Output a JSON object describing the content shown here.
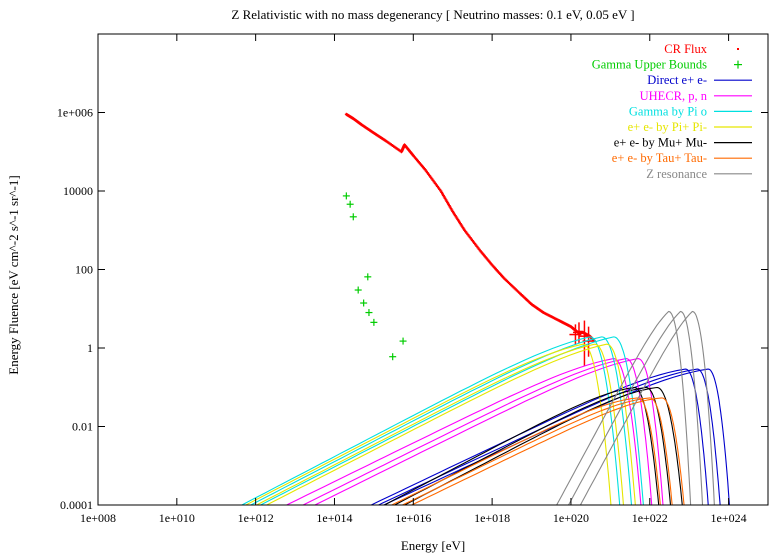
{
  "chart_data": {
    "type": "line",
    "title": "Z Relativistic with no mass degenerancy [ Neutrino masses: 0.1 eV, 0.05 eV ]",
    "xlabel": "Energy [eV]",
    "ylabel": "Energy Fluence [eV cm^-2 s^-1 sr^-1]",
    "xscale": "log",
    "yscale": "log",
    "xlim": [
      100000000.0,
      1e+25
    ],
    "ylim": [
      0.0001,
      100000000.0
    ],
    "xticks": [
      {
        "value": 100000000.0,
        "label": "1e+008"
      },
      {
        "value": 10000000000.0,
        "label": "1e+010"
      },
      {
        "value": 1000000000000.0,
        "label": "1e+012"
      },
      {
        "value": 100000000000000.0,
        "label": "1e+014"
      },
      {
        "value": 1e+16,
        "label": "1e+016"
      },
      {
        "value": 1e+18,
        "label": "1e+018"
      },
      {
        "value": 1e+20,
        "label": "1e+020"
      },
      {
        "value": 1e+22,
        "label": "1e+022"
      },
      {
        "value": 1e+24,
        "label": "1e+024"
      }
    ],
    "yticks": [
      {
        "value": 0.0001,
        "label": "0.0001"
      },
      {
        "value": 0.01,
        "label": "0.01"
      },
      {
        "value": 1,
        "label": "1"
      },
      {
        "value": 100,
        "label": "100"
      },
      {
        "value": 10000,
        "label": "10000"
      },
      {
        "value": 1000000,
        "label": "1e+006"
      }
    ],
    "grid": false,
    "legend_position": "top-right",
    "series": [
      {
        "name": "CR Flux",
        "kind": "points",
        "color": "#ff0000",
        "points": [
          [
            200000000000000.0,
            900000.0
          ],
          [
            300000000000000.0,
            700000.0
          ],
          [
            500000000000000.0,
            480000.0
          ],
          [
            1000000000000000.0,
            300000.0
          ],
          [
            2000000000000000.0,
            190000.0
          ],
          [
            5000000000000000.0,
            100000.0
          ],
          [
            6000000000000000.0,
            150000.0
          ],
          [
            1e+16,
            80000.0
          ],
          [
            2e+16,
            35000.0
          ],
          [
            5e+16,
            10000.0
          ],
          [
            1e+17,
            3000.0
          ],
          [
            2e+17,
            1000.0
          ],
          [
            5e+17,
            300
          ],
          [
            1e+18,
            130
          ],
          [
            2e+18,
            60
          ],
          [
            5e+18,
            25
          ],
          [
            1e+19,
            13
          ],
          [
            2e+19,
            8
          ],
          [
            5e+19,
            5
          ],
          [
            1e+20,
            3.5
          ],
          [
            1.5e+20,
            2.5
          ],
          [
            2e+20,
            2.5
          ],
          [
            3e+20,
            2
          ],
          [
            4e+20,
            1.5
          ]
        ]
      },
      {
        "name": "Gamma Upper Bounds",
        "kind": "points",
        "color": "#00cc00",
        "points": [
          [
            200000000000000.0,
            7500
          ],
          [
            250000000000000.0,
            4600
          ],
          [
            300000000000000.0,
            2200
          ],
          [
            400000000000000.0,
            30
          ],
          [
            550000000000000.0,
            14
          ],
          [
            700000000000000.0,
            65
          ],
          [
            750000000000000.0,
            8
          ],
          [
            1000000000000000.0,
            4.5
          ],
          [
            3000000000000000.0,
            0.6
          ],
          [
            5500000000000000.0,
            1.5
          ]
        ]
      },
      {
        "name": "Direct e+ e-",
        "kind": "curves",
        "color": "#0000cc",
        "curves": [
          {
            "start": 200000000000000.0,
            "peak_e": 8e+22,
            "peak_v": 0.65,
            "cut": 3.5e+23
          },
          {
            "start": 300000000000000.0,
            "peak_e": 1.6e+23,
            "peak_v": 0.65,
            "cut": 7e+23
          },
          {
            "start": 400000000000000.0,
            "peak_e": 3e+23,
            "peak_v": 0.65,
            "cut": 1.2e+24
          }
        ]
      },
      {
        "name": "UHECR, p, n",
        "kind": "curves",
        "color": "#ff00ff",
        "curves": [
          {
            "start": 1500000000000.0,
            "peak_e": 1.2e+21,
            "peak_v": 1.2,
            "cut": 7e+21
          },
          {
            "start": 4000000000000.0,
            "peak_e": 2.5e+21,
            "peak_v": 1.2,
            "cut": 1.3e+22
          },
          {
            "start": 8000000000000.0,
            "peak_e": 5e+21,
            "peak_v": 1.2,
            "cut": 2.5e+22
          }
        ]
      },
      {
        "name": "Gamma by Pi o",
        "kind": "curves",
        "color": "#00e0e0",
        "curves": [
          {
            "start": 120000000000.0,
            "peak_e": 3e+20,
            "peak_v": 4.3,
            "cut": 2e+21
          },
          {
            "start": 200000000000.0,
            "peak_e": 6e+20,
            "peak_v": 4.3,
            "cut": 4e+21
          },
          {
            "start": 350000000000.0,
            "peak_e": 1.2e+21,
            "peak_v": 4.3,
            "cut": 8e+21
          }
        ]
      },
      {
        "name": "e+ e- by Pi+ Pi-",
        "kind": "curves",
        "color": "#e6e600",
        "curves": [
          {
            "start": 150000000000.0,
            "peak_e": 2e+20,
            "peak_v": 2.8,
            "cut": 1.2e+21
          },
          {
            "start": 280000000000.0,
            "peak_e": 4e+20,
            "peak_v": 2.8,
            "cut": 2.5e+21
          },
          {
            "start": 500000000000.0,
            "peak_e": 8e+20,
            "peak_v": 2.8,
            "cut": 5e+21
          }
        ]
      },
      {
        "name": "e+ e- by Mu+ Mu-",
        "kind": "curves",
        "color": "#000000",
        "curves": [
          {
            "start": 500000000000000.0,
            "peak_e": 4e+21,
            "peak_v": 0.22,
            "cut": 2e+22
          },
          {
            "start": 900000000000000.0,
            "peak_e": 8e+21,
            "peak_v": 0.22,
            "cut": 4e+22
          },
          {
            "start": 1600000000000000.0,
            "peak_e": 1.5e+22,
            "peak_v": 0.22,
            "cut": 8e+22
          }
        ]
      },
      {
        "name": "e+ e- by Tau+ Tau-",
        "kind": "curves",
        "color": "#ff6a00",
        "curves": [
          {
            "start": 700000000000000.0,
            "peak_e": 5e+21,
            "peak_v": 0.12,
            "cut": 2.2e+22
          },
          {
            "start": 1300000000000000.0,
            "peak_e": 1e+22,
            "peak_v": 0.12,
            "cut": 4.4e+22
          },
          {
            "start": 2200000000000000.0,
            "peak_e": 2e+22,
            "peak_v": 0.12,
            "cut": 8.8e+22
          }
        ]
      },
      {
        "name": "Z resonance",
        "kind": "curves",
        "color": "#888888",
        "curves": [
          {
            "start": 3e+19,
            "peak_e": 3e+22,
            "peak_v": 19,
            "cut": 1.2e+23
          },
          {
            "start": 6e+19,
            "peak_e": 6e+22,
            "peak_v": 19,
            "cut": 2.4e+23
          },
          {
            "start": 1.2e+20,
            "peak_e": 1.2e+23,
            "peak_v": 19,
            "cut": 4.8e+23
          }
        ]
      }
    ]
  }
}
